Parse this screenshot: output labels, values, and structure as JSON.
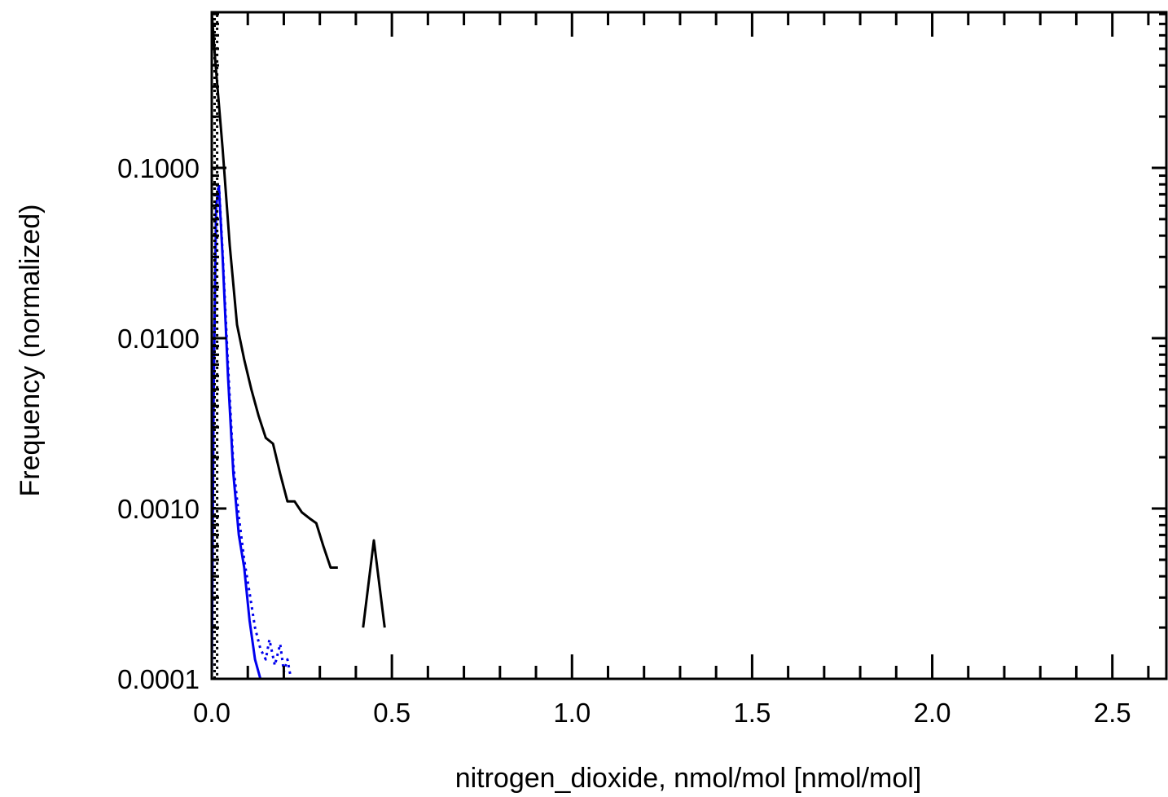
{
  "chart_data": {
    "type": "line",
    "xlabel": "nitrogen_dioxide, nmol/mol [nmol/mol]",
    "ylabel": "Frequency (normalized)",
    "xlim": [
      0.0,
      2.65
    ],
    "ylim": [
      0.0001,
      0.82
    ],
    "yscale": "log",
    "grid": false,
    "x_ticks": [
      "0.0",
      "0.5",
      "1.0",
      "1.5",
      "2.0",
      "2.5"
    ],
    "y_ticks": [
      "0.0001",
      "0.0010",
      "0.0100",
      "0.1000"
    ],
    "series": [
      {
        "color": "#000000",
        "style": "solid",
        "x": [
          0.0,
          0.01,
          0.03,
          0.05,
          0.07,
          0.09,
          0.11,
          0.13,
          0.15,
          0.17,
          0.19,
          0.21,
          0.23,
          0.25,
          0.27,
          0.29,
          0.31,
          0.33,
          0.35
        ],
        "y": [
          0.82,
          0.42,
          0.13,
          0.035,
          0.012,
          0.0075,
          0.005,
          0.0035,
          0.0026,
          0.0024,
          0.0016,
          0.0011,
          0.0011,
          0.00095,
          0.00088,
          0.00082,
          0.0006,
          0.00045,
          0.00045
        ]
      },
      {
        "color": "#000000",
        "style": "solid",
        "x": [
          0.42,
          0.45,
          0.48
        ],
        "y": [
          0.0002,
          0.00065,
          0.0002
        ]
      },
      {
        "color": "#0000ee",
        "style": "solid",
        "x": [
          0.0,
          0.005,
          0.012,
          0.02,
          0.03,
          0.045,
          0.06,
          0.075,
          0.09,
          0.105,
          0.12,
          0.135
        ],
        "y": [
          0.0001,
          0.004,
          0.06,
          0.077,
          0.03,
          0.006,
          0.0016,
          0.0007,
          0.00045,
          0.00022,
          0.00013,
          0.0001
        ]
      },
      {
        "color": "#0000ee",
        "style": "dotted",
        "x": [
          0.0,
          0.005,
          0.012,
          0.02,
          0.03,
          0.045,
          0.06,
          0.075,
          0.09,
          0.105,
          0.12,
          0.135,
          0.15,
          0.16,
          0.175,
          0.19,
          0.2,
          0.21,
          0.22,
          0.23
        ],
        "y": [
          0.0001,
          0.005,
          0.065,
          0.08,
          0.032,
          0.007,
          0.0018,
          0.0009,
          0.0005,
          0.00032,
          0.0002,
          0.00015,
          0.00013,
          0.00017,
          0.00012,
          0.00016,
          0.00011,
          0.00013,
          0.0001,
          0.0001
        ]
      },
      {
        "color": "#000000",
        "style": "dotted",
        "x": [
          0.008,
          0.008,
          0.015,
          0.015
        ],
        "y": [
          0.0001,
          0.82,
          0.82,
          0.0001
        ]
      }
    ]
  }
}
